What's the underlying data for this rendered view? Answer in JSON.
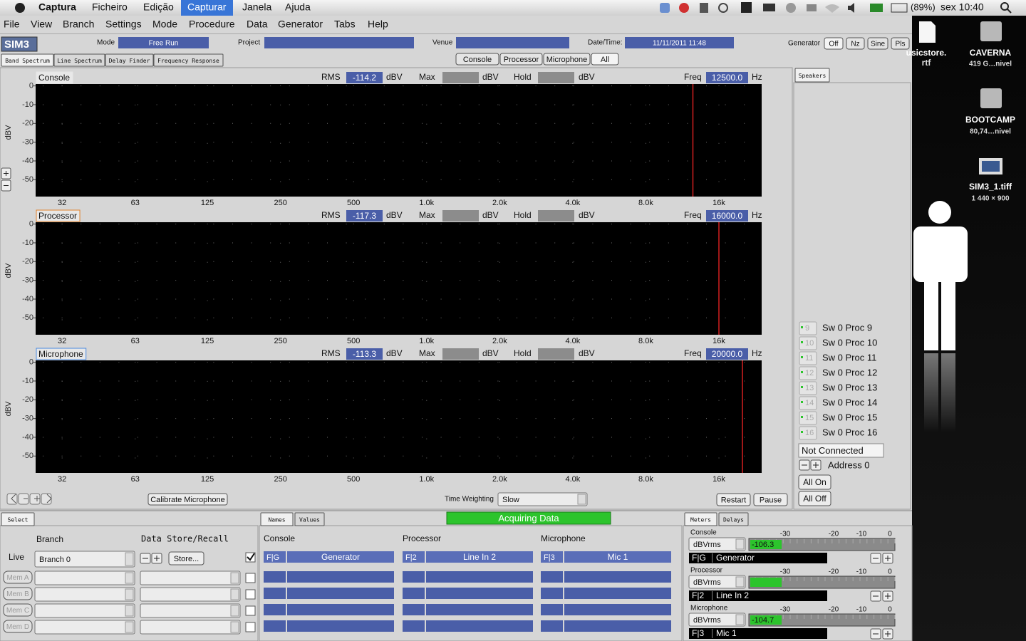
{
  "menubar": {
    "app": "Captura",
    "items": [
      "Ficheiro",
      "Edição",
      "Capturar",
      "Janela",
      "Ajuda"
    ],
    "active": 2,
    "battery": "(89%)",
    "clock": "sex 10:40"
  },
  "menu": [
    "File",
    "View",
    "Branch",
    "Settings",
    "Mode",
    "Procedure",
    "Data",
    "Generator",
    "Tabs",
    "Help"
  ],
  "toolbar": {
    "logo": "SIM3",
    "mode_label": "Mode",
    "mode": "Free Run",
    "project_label": "Project",
    "venue_label": "Venue",
    "datetime_label": "Date/Time:",
    "datetime": "11/11/2011 11:48",
    "generator_label": "Generator",
    "generator_buttons": [
      "Off",
      "Nz",
      "Sine",
      "Pls"
    ]
  },
  "tabs": [
    "Band Spectrum",
    "Line Spectrum",
    "Delay Finder",
    "Frequency Response"
  ],
  "view_buttons": [
    "Console",
    "Processor",
    "Microphone",
    "All"
  ],
  "plot_labels": {
    "rms": "RMS",
    "max": "Max",
    "hold": "Hold",
    "freq": "Freq",
    "unit": "dBV",
    "hz": "Hz",
    "y_axis": "dBV"
  },
  "axes": {
    "log_x": true,
    "xlim": [
      24.5,
      24000
    ],
    "xticks": [
      {
        "value": 31.5,
        "label": "32"
      },
      63,
      125,
      250,
      500,
      {
        "value": 1000,
        "label": "1.0k"
      },
      {
        "value": 2000,
        "label": "2.0k"
      },
      {
        "value": 4000,
        "label": "4.0k"
      },
      {
        "value": 8000,
        "label": "8.0k"
      },
      {
        "value": 16000,
        "label": "16k"
      }
    ],
    "ylim": [
      -59,
      1
    ],
    "yticks": [
      0,
      -10,
      -20,
      -30,
      -40,
      -50
    ],
    "marker_color": "#d42020"
  },
  "plots": [
    {
      "name": "Console",
      "color": "#e6e6e6",
      "rms": "-114.2",
      "freq": {
        "value": 12500,
        "label": "12500.0"
      }
    },
    {
      "name": "Processor",
      "color": "#e0802a",
      "rms": "-117.3",
      "freq": {
        "value": 16000,
        "label": "16000.0"
      }
    },
    {
      "name": "Microphone",
      "color": "#4a8ae0",
      "rms": "-113.3",
      "freq": {
        "value": 20000,
        "label": "20000.0"
      }
    }
  ],
  "bottom_controls": {
    "calibrate": "Calibrate Microphone",
    "time_weighting_label": "Time Weighting",
    "time_weighting": "Slow",
    "restart": "Restart",
    "pause": "Pause"
  },
  "speakers": {
    "tab": "Speakers",
    "items": [
      {
        "num": "9",
        "label": "Sw 0 Proc 9"
      },
      {
        "num": "10",
        "label": "Sw 0 Proc 10"
      },
      {
        "num": "11",
        "label": "Sw 0 Proc 11"
      },
      {
        "num": "12",
        "label": "Sw 0 Proc 12"
      },
      {
        "num": "13",
        "label": "Sw 0 Proc 13"
      },
      {
        "num": "14",
        "label": "Sw 0 Proc 14"
      },
      {
        "num": "15",
        "label": "Sw 0 Proc 15"
      },
      {
        "num": "16",
        "label": "Sw 0 Proc 16"
      }
    ],
    "status": "Not Connected",
    "address": "Address 0",
    "all_on": "All On",
    "all_off": "All Off"
  },
  "select_panel": {
    "tab": "Select",
    "branch_label": "Branch",
    "store_label": "Data Store/Recall",
    "live_label": "Live",
    "branch": "Branch 0",
    "store_button": "Store...",
    "memories": [
      "Mem A",
      "Mem B",
      "Mem C",
      "Mem D"
    ]
  },
  "names_panel": {
    "tabs": [
      "Names",
      "Values"
    ],
    "status": "Acquiring Data",
    "columns": [
      {
        "name": "Console",
        "code": "F|G",
        "source": "Generator"
      },
      {
        "name": "Processor",
        "code": "F|2",
        "source": "Line In 2"
      },
      {
        "name": "Microphone",
        "code": "F|3",
        "source": "Mic 1"
      }
    ]
  },
  "meters_panel": {
    "tabs": [
      "Meters",
      "Delays"
    ],
    "scale": [
      "-30",
      "-20",
      "-10",
      "0"
    ],
    "meters": [
      {
        "name": "Console",
        "unit": "dBVrms",
        "reading": "-106.3",
        "code": "F|G",
        "source": "Generator"
      },
      {
        "name": "Processor",
        "unit": "dBVrms",
        "code": "F|2",
        "source": "Line In 2"
      },
      {
        "name": "Microphone",
        "unit": "dBVrms",
        "reading": "-104.7",
        "code": "F|3",
        "source": "Mic 1"
      }
    ]
  },
  "desktop": {
    "icons": [
      {
        "title": "usicstore.",
        "subtitle": "rtf"
      },
      {
        "title": "CAVERNA",
        "subtitle": "419 G…nivel"
      },
      {
        "title": "BOOTCAMP",
        "subtitle": "80,74…nivel"
      },
      {
        "title": "SIM3_1.tiff",
        "subtitle": "1 440 × 900"
      }
    ]
  }
}
